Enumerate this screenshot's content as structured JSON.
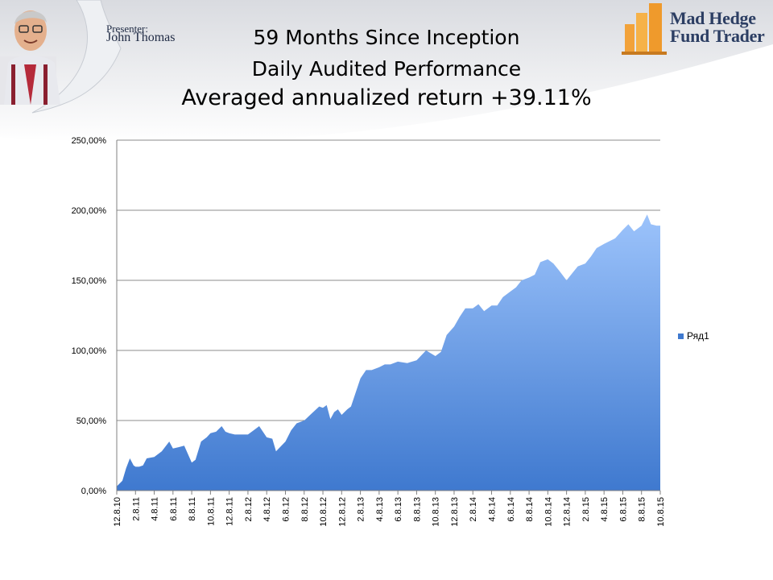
{
  "header": {
    "presenter_title": "Presenter:",
    "presenter_name": "John Thomas",
    "logo_line1": "Mad Hedge",
    "logo_line2": "Fund Trader"
  },
  "title_lines": [
    "59 Months Since Inception",
    "Daily Audited Performance",
    "Averaged annualized return +39.11%"
  ],
  "colors": {
    "area_top": "#9cc3fb",
    "area_bottom": "#3f79cf",
    "gridline": "#8c8c8c",
    "logo_orange": "#f2a23a"
  },
  "chart_data": {
    "type": "area",
    "ylim": [
      0,
      250
    ],
    "y_ticks": [
      "0,00%",
      "50,00%",
      "100,00%",
      "150,00%",
      "200,00%",
      "250,00%"
    ],
    "y_tick_values": [
      0,
      50,
      100,
      150,
      200,
      250
    ],
    "x_tick_labels": [
      "12.8.10",
      "2.8.11",
      "4.8.11",
      "6.8.11",
      "8.8.11",
      "10.8.11",
      "12.8.11",
      "2.8.12",
      "4.8.12",
      "6.8.12",
      "8.8.12",
      "10.8.12",
      "12.8.12",
      "2.8.13",
      "4.8.13",
      "6.8.13",
      "8.8.13",
      "10.8.13",
      "12.8.13",
      "2.8.14",
      "4.8.14",
      "6.8.14",
      "8.8.14",
      "10.8.14",
      "12.8.14",
      "2.8.15",
      "4.8.15",
      "6.8.15",
      "8.8.15",
      "10.8.15"
    ],
    "grid": true,
    "legend_position": "right",
    "series": [
      {
        "name": "Ряд1",
        "x": [
          0,
          0.3,
          0.5,
          0.7,
          0.9,
          1.0,
          1.2,
          1.4,
          1.6,
          2.0,
          2.4,
          2.8,
          3.0,
          3.3,
          3.6,
          4.0,
          4.2,
          4.5,
          4.8,
          5.0,
          5.3,
          5.6,
          5.8,
          6.0,
          6.3,
          6.7,
          7.0,
          7.3,
          7.6,
          8.0,
          8.3,
          8.5,
          9.0,
          9.3,
          9.6,
          10.0,
          10.4,
          10.8,
          11.0,
          11.2,
          11.4,
          11.6,
          11.8,
          12.0,
          12.3,
          12.5,
          12.8,
          13.0,
          13.3,
          13.6,
          14.0,
          14.3,
          14.6,
          15.0,
          15.5,
          16.0,
          16.5,
          17.0,
          17.3,
          17.6,
          18.0,
          18.3,
          18.6,
          19.0,
          19.3,
          19.6,
          20.0,
          20.3,
          20.6,
          21.0,
          21.3,
          21.6,
          22.0,
          22.3,
          22.6,
          23.0,
          23.3,
          23.6,
          24.0,
          24.3,
          24.6,
          25.0,
          25.3,
          25.6,
          26.0,
          26.3,
          26.6,
          27.0,
          27.3,
          27.6,
          28.0,
          28.3,
          28.5,
          28.8,
          29.0
        ],
        "values": [
          3,
          7,
          16,
          23,
          18,
          17,
          17,
          18,
          23,
          24,
          28,
          35,
          30,
          31,
          32,
          20,
          22,
          35,
          38,
          41,
          42,
          46,
          42,
          41,
          40,
          40,
          40,
          43,
          46,
          38,
          37,
          28,
          35,
          43,
          48,
          50,
          55,
          60,
          59,
          61,
          51,
          56,
          58,
          54,
          58,
          60,
          72,
          80,
          86,
          86,
          88,
          90,
          90,
          92,
          91,
          93,
          100,
          96,
          99,
          111,
          117,
          124,
          130,
          130,
          133,
          128,
          132,
          132,
          138,
          142,
          145,
          150,
          152,
          154,
          163,
          165,
          162,
          157,
          150,
          155,
          160,
          162,
          167,
          173,
          176,
          178,
          180,
          186,
          190,
          185,
          189,
          197,
          190,
          189,
          189
        ]
      }
    ]
  }
}
